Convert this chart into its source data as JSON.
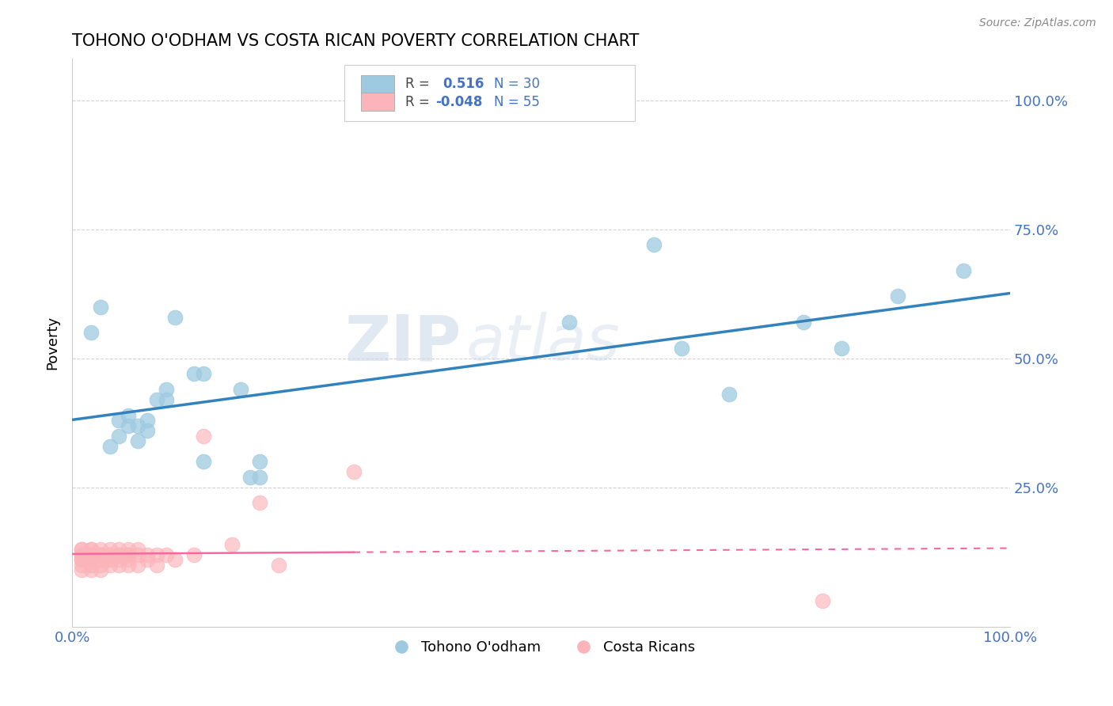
{
  "title": "TOHONO O'ODHAM VS COSTA RICAN POVERTY CORRELATION CHART",
  "source_text": "Source: ZipAtlas.com",
  "xlabel": "",
  "ylabel": "Poverty",
  "xlim": [
    0.0,
    1.0
  ],
  "ylim": [
    -0.02,
    1.08
  ],
  "x_tick_labels": [
    "0.0%",
    "100.0%"
  ],
  "x_tick_positions": [
    0.0,
    1.0
  ],
  "y_tick_labels": [
    "25.0%",
    "50.0%",
    "75.0%",
    "100.0%"
  ],
  "y_tick_positions": [
    0.25,
    0.5,
    0.75,
    1.0
  ],
  "blue_color": "#9ecae1",
  "pink_color": "#fbb4b9",
  "blue_line_color": "#3182bd",
  "pink_line_color": "#f768a1",
  "watermark_zip": "ZIP",
  "watermark_atlas": "atlas",
  "tohono_x": [
    0.02,
    0.03,
    0.05,
    0.05,
    0.06,
    0.06,
    0.07,
    0.07,
    0.08,
    0.09,
    0.1,
    0.11,
    0.13,
    0.14,
    0.18,
    0.2,
    0.53,
    0.62,
    0.65,
    0.7,
    0.78,
    0.82,
    0.88,
    0.95,
    0.04,
    0.08,
    0.1,
    0.14,
    0.19,
    0.2
  ],
  "tohono_y": [
    0.55,
    0.6,
    0.35,
    0.38,
    0.37,
    0.39,
    0.34,
    0.37,
    0.38,
    0.42,
    0.44,
    0.58,
    0.47,
    0.47,
    0.44,
    0.3,
    0.57,
    0.72,
    0.52,
    0.43,
    0.57,
    0.52,
    0.62,
    0.67,
    0.33,
    0.36,
    0.42,
    0.3,
    0.27,
    0.27
  ],
  "costa_x": [
    0.01,
    0.01,
    0.01,
    0.01,
    0.01,
    0.01,
    0.01,
    0.01,
    0.02,
    0.02,
    0.02,
    0.02,
    0.02,
    0.02,
    0.02,
    0.02,
    0.03,
    0.03,
    0.03,
    0.03,
    0.03,
    0.03,
    0.03,
    0.04,
    0.04,
    0.04,
    0.04,
    0.04,
    0.04,
    0.05,
    0.05,
    0.05,
    0.05,
    0.05,
    0.06,
    0.06,
    0.06,
    0.06,
    0.06,
    0.07,
    0.07,
    0.07,
    0.08,
    0.08,
    0.09,
    0.09,
    0.1,
    0.11,
    0.13,
    0.14,
    0.17,
    0.2,
    0.22,
    0.3,
    0.8
  ],
  "costa_y": [
    0.13,
    0.13,
    0.12,
    0.12,
    0.11,
    0.11,
    0.1,
    0.09,
    0.13,
    0.13,
    0.12,
    0.12,
    0.11,
    0.1,
    0.1,
    0.09,
    0.13,
    0.12,
    0.12,
    0.11,
    0.11,
    0.1,
    0.09,
    0.13,
    0.12,
    0.12,
    0.11,
    0.11,
    0.1,
    0.13,
    0.12,
    0.12,
    0.11,
    0.1,
    0.13,
    0.12,
    0.12,
    0.11,
    0.1,
    0.13,
    0.12,
    0.1,
    0.12,
    0.11,
    0.12,
    0.1,
    0.12,
    0.11,
    0.12,
    0.35,
    0.14,
    0.22,
    0.1,
    0.28,
    0.03
  ]
}
